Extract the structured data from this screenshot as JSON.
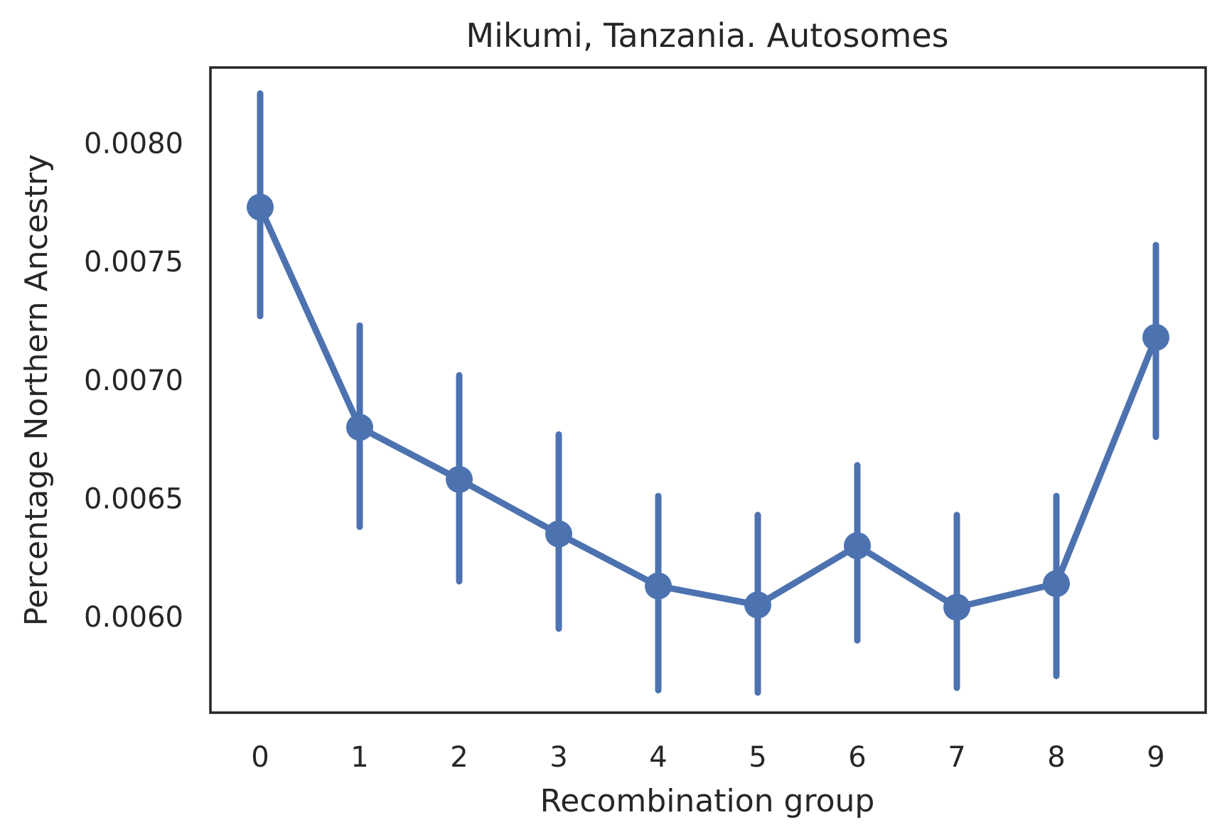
{
  "chart_data": {
    "type": "line",
    "title": "Mikumi, Tanzania. Autosomes",
    "xlabel": "Recombination group",
    "ylabel": "Percentage Northern Ancestry",
    "x": [
      "0",
      "1",
      "2",
      "3",
      "4",
      "5",
      "6",
      "7",
      "8",
      "9"
    ],
    "series": [
      {
        "values": [
          0.00773,
          0.0068,
          0.00658,
          0.00635,
          0.00613,
          0.00605,
          0.0063,
          0.00604,
          0.00614,
          0.00718
        ],
        "error_low": [
          0.00727,
          0.00638,
          0.00615,
          0.00595,
          0.00569,
          0.00568,
          0.0059,
          0.0057,
          0.00575,
          0.00676
        ],
        "error_high": [
          0.00821,
          0.00723,
          0.00702,
          0.00677,
          0.00651,
          0.00643,
          0.00664,
          0.00643,
          0.00651,
          0.00757
        ]
      }
    ],
    "yticks": [
      "0.0060",
      "0.0065",
      "0.0070",
      "0.0075",
      "0.0080"
    ],
    "ylim": [
      0.005595,
      0.00832
    ],
    "grid": false,
    "colors": {
      "series": "#4c72b0",
      "frame": "#262626"
    }
  }
}
